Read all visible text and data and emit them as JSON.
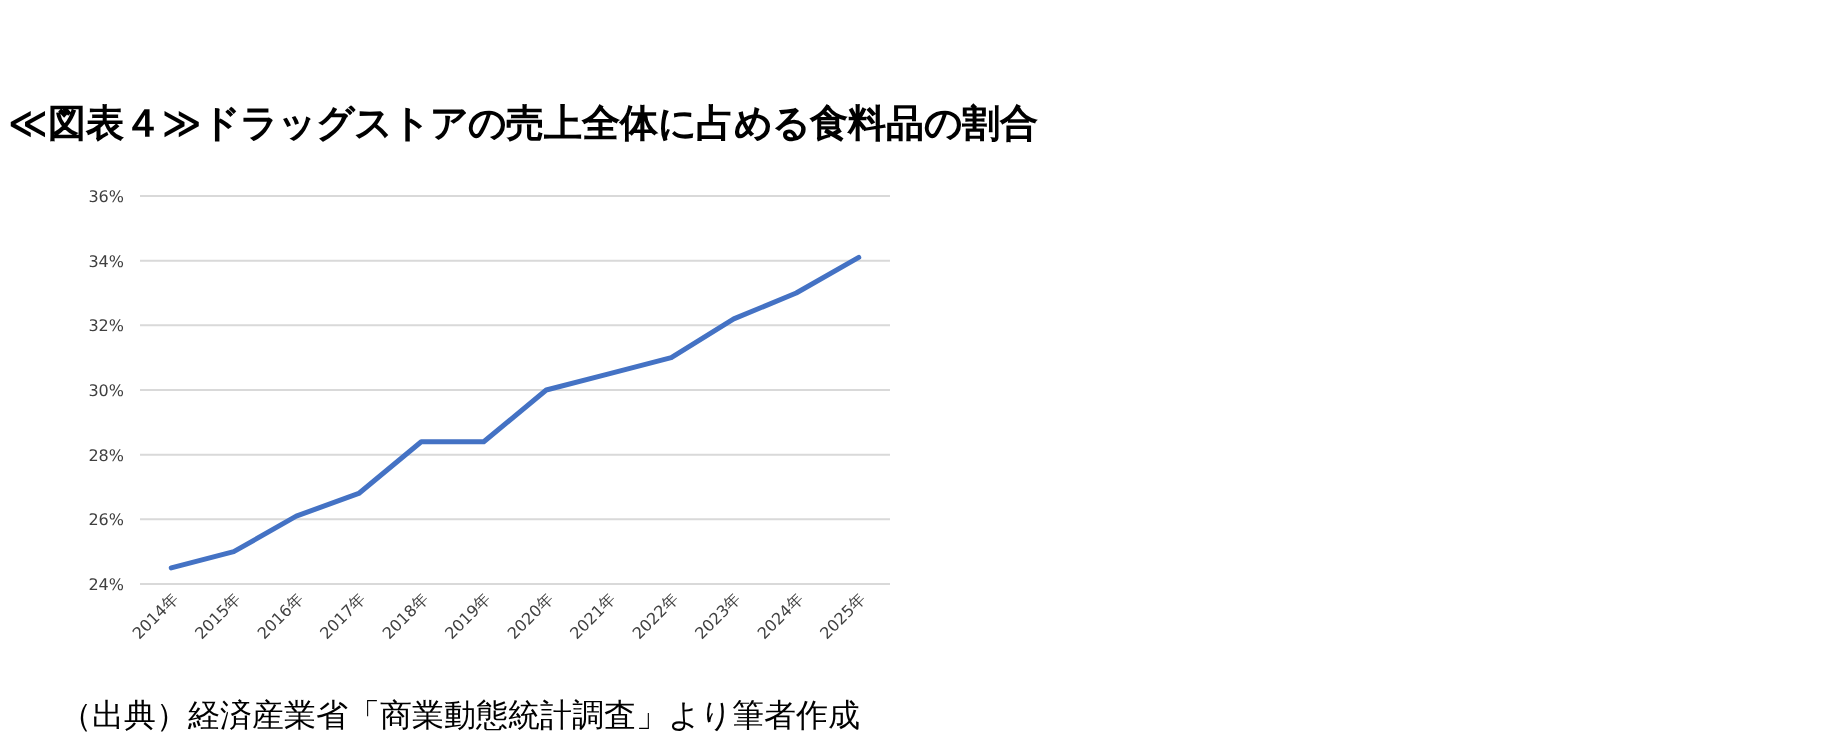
{
  "chart_data": {
    "type": "line",
    "title": "≪図表４≫ドラッグストアの売上全体に占める食料品の割合",
    "categories": [
      "2014年",
      "2015年",
      "2016年",
      "2017年",
      "2018年",
      "2019年",
      "2020年",
      "2021年",
      "2022年",
      "2023年",
      "2024年",
      "2025年"
    ],
    "series": [
      {
        "color": "#4472c4",
        "values": [
          24.5,
          25.0,
          26.1,
          26.8,
          28.4,
          28.4,
          30.0,
          30.5,
          31.0,
          32.2,
          33.0,
          34.1
        ]
      }
    ],
    "ylim": [
      24,
      36
    ],
    "yticks": [
      {
        "value": 24,
        "label": "24%"
      },
      {
        "value": 26,
        "label": "26%"
      },
      {
        "value": 28,
        "label": "28%"
      },
      {
        "value": 30,
        "label": "30%"
      },
      {
        "value": 32,
        "label": "32%"
      },
      {
        "value": 34,
        "label": "34%"
      },
      {
        "value": 36,
        "label": "36%"
      }
    ],
    "grid": "y",
    "annotations": [
      "（出典）経済産業省「商業動態統計調査」より筆者作成"
    ]
  }
}
